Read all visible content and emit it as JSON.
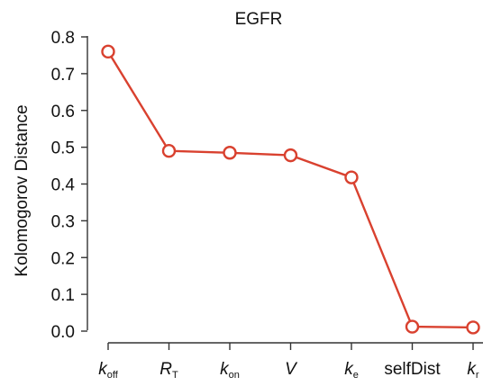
{
  "chart_data": {
    "type": "line",
    "title": "EGFR",
    "xlabel": "",
    "ylabel": "Kolomogorov Distance",
    "categories": [
      {
        "base": "k",
        "sub": "off",
        "italic": true
      },
      {
        "base": "R",
        "sub": "T",
        "italic": true
      },
      {
        "base": "k",
        "sub": "on",
        "italic": true
      },
      {
        "base": "V",
        "sub": "",
        "italic": true
      },
      {
        "base": "k",
        "sub": "e",
        "italic": true
      },
      {
        "base": "selfDist",
        "sub": "",
        "italic": false
      },
      {
        "base": "k",
        "sub": "r",
        "italic": true
      }
    ],
    "series": [
      {
        "values": [
          0.76,
          0.49,
          0.485,
          0.478,
          0.418,
          0.012,
          0.01
        ]
      }
    ],
    "yticks": [
      "0.0",
      "0.1",
      "0.2",
      "0.3",
      "0.4",
      "0.5",
      "0.6",
      "0.7",
      "0.8"
    ],
    "ylim": [
      0,
      0.8
    ],
    "grid": false,
    "legend": "none",
    "colors": {
      "series": "#d9412f",
      "axis": "#333333",
      "text": "#111111"
    }
  }
}
